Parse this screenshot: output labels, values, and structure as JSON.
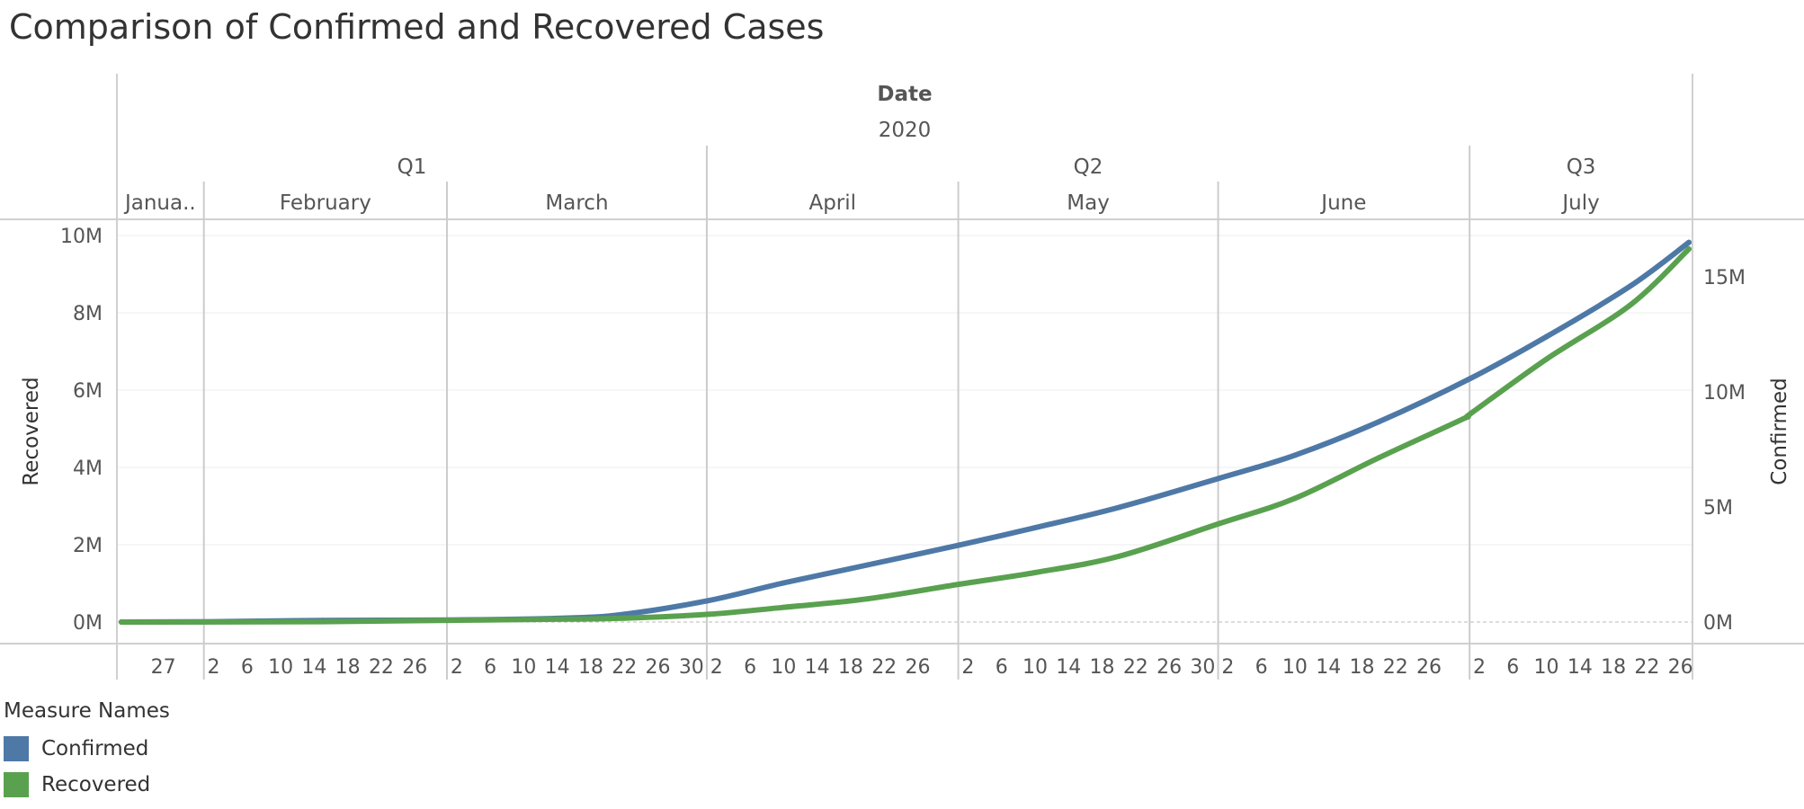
{
  "title": "Comparison of Confirmed and Recovered Cases",
  "header": {
    "field": "Date",
    "year": "2020"
  },
  "legend": {
    "title": "Measure Names",
    "items": [
      {
        "name": "Confirmed",
        "color": "#4e79a7"
      },
      {
        "name": "Recovered",
        "color": "#59a14f"
      }
    ]
  },
  "chart_data": {
    "type": "line",
    "x_axis": {
      "quarters": [
        "Q1",
        "Q2",
        "Q3"
      ],
      "months": [
        "Janua..",
        "February",
        "March",
        "April",
        "May",
        "June",
        "July"
      ],
      "day_labels": [
        [
          "27"
        ],
        [
          "2",
          "6",
          "10",
          "14",
          "18",
          "22",
          "26"
        ],
        [
          "2",
          "6",
          "10",
          "14",
          "18",
          "22",
          "26",
          "30"
        ],
        [
          "2",
          "6",
          "10",
          "14",
          "18",
          "22",
          "26"
        ],
        [
          "2",
          "6",
          "10",
          "14",
          "18",
          "22",
          "26",
          "30"
        ],
        [
          "2",
          "6",
          "10",
          "14",
          "18",
          "22",
          "26"
        ],
        [
          "2",
          "6",
          "10",
          "14",
          "18",
          "22",
          "26"
        ]
      ],
      "range": [
        "2020-01-22",
        "2020-07-27"
      ]
    },
    "y_left": {
      "label": "Recovered",
      "ticks": [
        "0M",
        "2M",
        "4M",
        "6M",
        "8M",
        "10M"
      ],
      "range": [
        0,
        10000000
      ]
    },
    "y_right": {
      "label": "Confirmed",
      "ticks": [
        "0M",
        "5M",
        "10M",
        "15M"
      ],
      "range": [
        0,
        16800000
      ]
    },
    "grid": true,
    "legend_position": "bottom-left",
    "series": [
      {
        "name": "Confirmed",
        "axis": "right",
        "color": "#4e79a7",
        "points": [
          [
            "2020-01-22",
            0
          ],
          [
            "2020-02-01",
            12000
          ],
          [
            "2020-02-15",
            69000
          ],
          [
            "2020-03-01",
            88000
          ],
          [
            "2020-03-15",
            170000
          ],
          [
            "2020-03-22",
            340000
          ],
          [
            "2020-04-01",
            930000
          ],
          [
            "2020-04-10",
            1700000
          ],
          [
            "2020-04-20",
            2480000
          ],
          [
            "2020-05-01",
            3350000
          ],
          [
            "2020-05-10",
            4100000
          ],
          [
            "2020-05-20",
            4980000
          ],
          [
            "2020-06-01",
            6250000
          ],
          [
            "2020-06-10",
            7250000
          ],
          [
            "2020-06-20",
            8700000
          ],
          [
            "2020-07-01",
            10600000
          ],
          [
            "2020-07-10",
            12400000
          ],
          [
            "2020-07-20",
            14600000
          ],
          [
            "2020-07-27",
            16500000
          ]
        ]
      },
      {
        "name": "Recovered",
        "axis": "left",
        "color": "#59a14f",
        "points": [
          [
            "2020-01-22",
            0
          ],
          [
            "2020-02-15",
            10000
          ],
          [
            "2020-03-01",
            45000
          ],
          [
            "2020-03-15",
            75000
          ],
          [
            "2020-03-22",
            100000
          ],
          [
            "2020-04-01",
            200000
          ],
          [
            "2020-04-10",
            380000
          ],
          [
            "2020-04-20",
            600000
          ],
          [
            "2020-05-01",
            980000
          ],
          [
            "2020-05-10",
            1280000
          ],
          [
            "2020-05-20",
            1700000
          ],
          [
            "2020-06-01",
            2550000
          ],
          [
            "2020-06-10",
            3200000
          ],
          [
            "2020-06-20",
            4250000
          ],
          [
            "2020-06-30",
            5250000
          ],
          [
            "2020-07-01",
            5400000
          ],
          [
            "2020-07-10",
            6800000
          ],
          [
            "2020-07-20",
            8200000
          ],
          [
            "2020-07-27",
            9650000
          ]
        ]
      }
    ]
  }
}
